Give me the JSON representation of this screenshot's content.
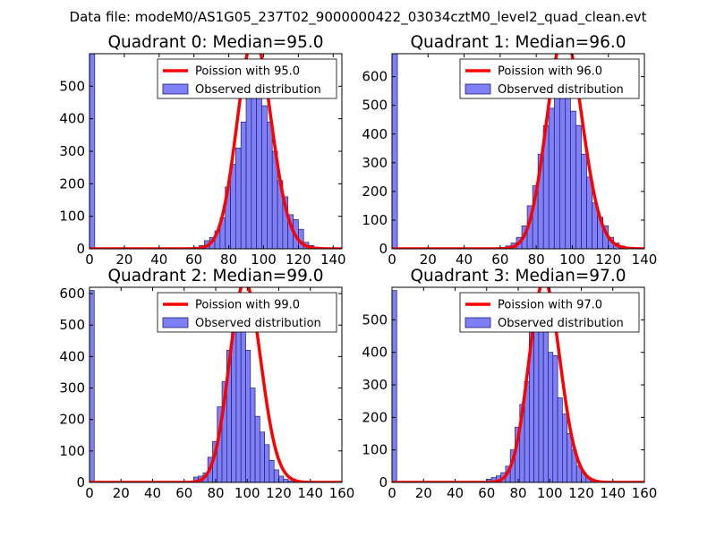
{
  "figure_title": "Data file: modeM0/AS1G05_237T02_9000000422_03034cztM0_level2_quad_clean.evt",
  "colors": {
    "hist_fill": "#7f7ff7",
    "hist_edge": "#1f1f6f",
    "fit_line": "#ff0000"
  },
  "chart_data": [
    {
      "type": "bar",
      "title": "Quadrant 0: Median=95.0",
      "xlim": [
        0,
        145
      ],
      "ylim": [
        0,
        600
      ],
      "xticks": [
        0,
        20,
        40,
        60,
        80,
        100,
        120,
        140
      ],
      "yticks": [
        0,
        100,
        200,
        300,
        400,
        500
      ],
      "legend": {
        "position": "top-right",
        "entries": [
          "Poission with 95.0",
          "Observed distribution"
        ]
      },
      "bin_width": 3,
      "bins_start": [
        0,
        3,
        6,
        9,
        12,
        15,
        18,
        21,
        24,
        27,
        30,
        33,
        36,
        39,
        42,
        45,
        48,
        51,
        54,
        57,
        60,
        63,
        66,
        69,
        72,
        75,
        78,
        81,
        84,
        87,
        90,
        93,
        96,
        99,
        102,
        105,
        108,
        111,
        114,
        117,
        120,
        123,
        126,
        129,
        132,
        135,
        138,
        141
      ],
      "bins_count": [
        600,
        0,
        0,
        0,
        0,
        0,
        0,
        0,
        0,
        0,
        0,
        0,
        0,
        0,
        0,
        0,
        0,
        0,
        0,
        2,
        5,
        10,
        25,
        35,
        55,
        95,
        190,
        260,
        310,
        390,
        500,
        540,
        560,
        440,
        390,
        300,
        210,
        160,
        105,
        90,
        60,
        20,
        10,
        5,
        2,
        1,
        0,
        0
      ],
      "fit_label": "Poission with 95.0",
      "fit_mean": 95.0,
      "fit_total": 5300
    },
    {
      "type": "bar",
      "title": "Quadrant 1: Median=96.0",
      "xlim": [
        0,
        140
      ],
      "ylim": [
        0,
        680
      ],
      "xticks": [
        0,
        20,
        40,
        60,
        80,
        100,
        120,
        140
      ],
      "yticks": [
        0,
        100,
        200,
        300,
        400,
        500,
        600
      ],
      "legend": {
        "position": "top-right",
        "entries": [
          "Poission with 96.0",
          "Observed distribution"
        ]
      },
      "bin_width": 3,
      "bins_start": [
        0,
        3,
        6,
        9,
        12,
        15,
        18,
        21,
        24,
        27,
        30,
        33,
        36,
        39,
        42,
        45,
        48,
        51,
        54,
        57,
        60,
        63,
        66,
        69,
        72,
        75,
        78,
        81,
        84,
        87,
        90,
        93,
        96,
        99,
        102,
        105,
        108,
        111,
        114,
        117,
        120,
        123,
        126,
        129,
        132,
        135,
        138
      ],
      "bins_count": [
        680,
        0,
        0,
        0,
        0,
        0,
        0,
        0,
        0,
        0,
        0,
        0,
        0,
        0,
        0,
        0,
        0,
        0,
        0,
        2,
        5,
        10,
        20,
        40,
        80,
        150,
        220,
        330,
        430,
        490,
        570,
        600,
        640,
        480,
        430,
        330,
        250,
        160,
        110,
        80,
        40,
        20,
        10,
        5,
        2,
        0,
        0
      ],
      "fit_label": "Poission with 96.0",
      "fit_mean": 96.0,
      "fit_total": 6100
    },
    {
      "type": "bar",
      "title": "Quadrant 2: Median=99.0",
      "xlim": [
        0,
        160
      ],
      "ylim": [
        0,
        620
      ],
      "xticks": [
        0,
        20,
        40,
        60,
        80,
        100,
        120,
        140,
        160
      ],
      "yticks": [
        0,
        100,
        200,
        300,
        400,
        500,
        600
      ],
      "legend": {
        "position": "top-right",
        "entries": [
          "Poission with 99.0",
          "Observed distribution"
        ]
      },
      "bin_width": 3,
      "bins_start": [
        0,
        3,
        6,
        9,
        12,
        15,
        18,
        21,
        24,
        27,
        30,
        33,
        36,
        39,
        42,
        45,
        48,
        51,
        54,
        57,
        60,
        63,
        66,
        69,
        72,
        75,
        78,
        81,
        84,
        87,
        90,
        93,
        96,
        99,
        102,
        105,
        108,
        111,
        114,
        117,
        120,
        123,
        126,
        129,
        132,
        135,
        138,
        141,
        144,
        147,
        150,
        153,
        156,
        159
      ],
      "bins_count": [
        610,
        0,
        0,
        0,
        0,
        0,
        0,
        0,
        0,
        0,
        0,
        0,
        0,
        0,
        0,
        0,
        0,
        0,
        0,
        0,
        0,
        0,
        17,
        20,
        30,
        80,
        130,
        240,
        320,
        420,
        590,
        480,
        580,
        420,
        300,
        210,
        160,
        120,
        70,
        40,
        20,
        10,
        5,
        2,
        0,
        0,
        0,
        0,
        0,
        0,
        0,
        0,
        0,
        0
      ],
      "fit_label": "Poission with 99.0",
      "fit_mean": 99.0,
      "fit_total": 5300
    },
    {
      "type": "bar",
      "title": "Quadrant 3: Median=97.0",
      "xlim": [
        0,
        160
      ],
      "ylim": [
        0,
        600
      ],
      "xticks": [
        0,
        20,
        40,
        60,
        80,
        100,
        120,
        140,
        160
      ],
      "yticks": [
        0,
        100,
        200,
        300,
        400,
        500
      ],
      "legend": {
        "position": "top-right",
        "entries": [
          "Poission with 97.0",
          "Observed distribution"
        ]
      },
      "bin_width": 3,
      "bins_start": [
        0,
        3,
        6,
        9,
        12,
        15,
        18,
        21,
        24,
        27,
        30,
        33,
        36,
        39,
        42,
        45,
        48,
        51,
        54,
        57,
        60,
        63,
        66,
        69,
        72,
        75,
        78,
        81,
        84,
        87,
        90,
        93,
        96,
        99,
        102,
        105,
        108,
        111,
        114,
        117,
        120,
        123,
        126,
        129,
        132,
        135,
        138,
        141,
        144,
        147,
        150,
        153,
        156,
        159
      ],
      "bins_count": [
        590,
        0,
        0,
        0,
        0,
        0,
        0,
        0,
        0,
        0,
        0,
        0,
        0,
        0,
        0,
        0,
        0,
        0,
        0,
        0,
        10,
        15,
        20,
        30,
        50,
        100,
        170,
        240,
        310,
        480,
        560,
        540,
        560,
        400,
        390,
        260,
        210,
        150,
        100,
        50,
        30,
        15,
        5,
        2,
        0,
        0,
        0,
        0,
        0,
        0,
        0,
        0,
        0,
        0
      ],
      "fit_label": "Poission with 97.0",
      "fit_mean": 97.0,
      "fit_total": 5100
    }
  ]
}
